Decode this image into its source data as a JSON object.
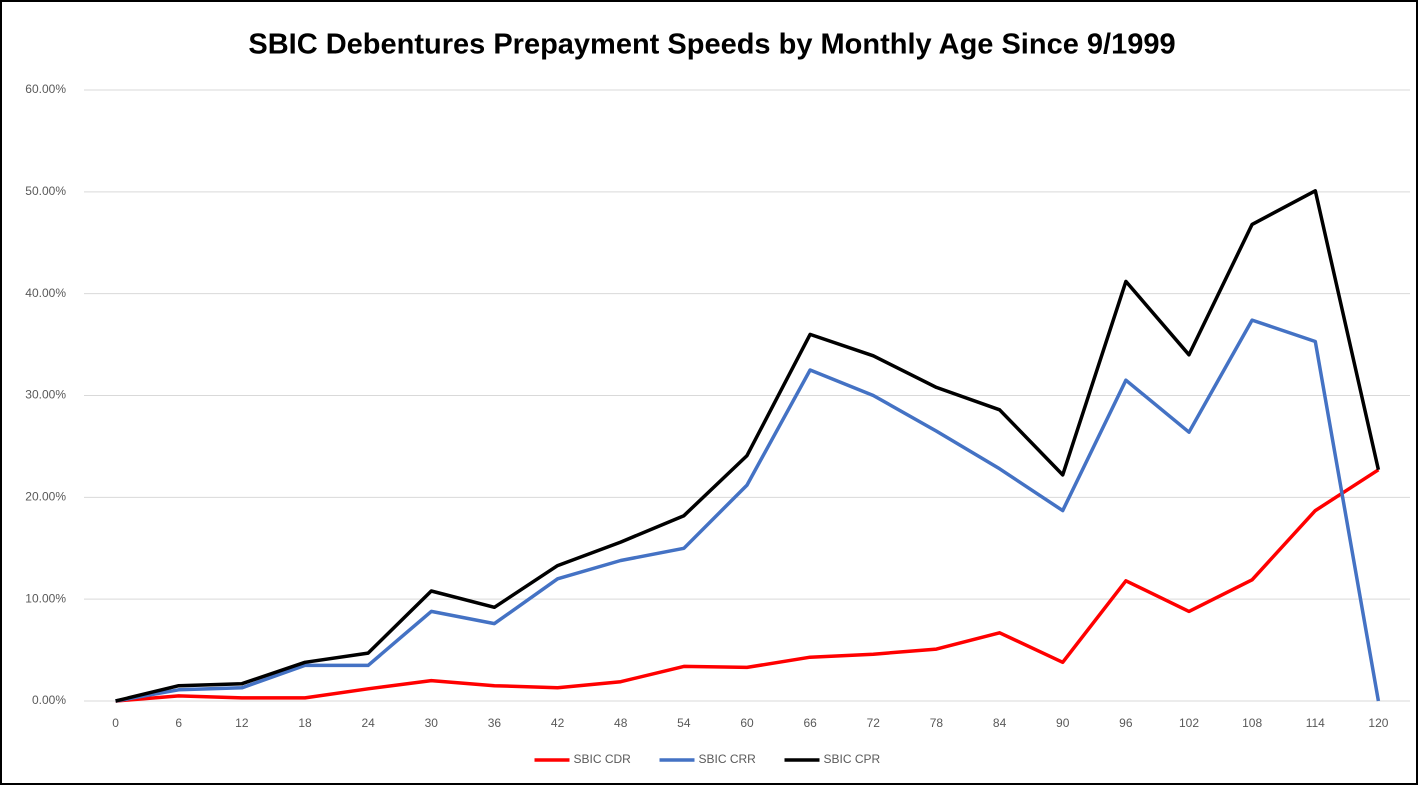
{
  "chart_data": {
    "type": "line",
    "title": "SBIC Debentures Prepayment Speeds by Monthly Age Since 9/1999",
    "categories": [
      "0",
      "6",
      "12",
      "18",
      "24",
      "30",
      "36",
      "42",
      "48",
      "54",
      "60",
      "66",
      "72",
      "78",
      "84",
      "90",
      "96",
      "102",
      "108",
      "114",
      "120"
    ],
    "series": [
      {
        "name": "SBIC CDR",
        "color": "#ff0000",
        "values": [
          0,
          0.5,
          0.3,
          0.3,
          1.2,
          2.0,
          1.5,
          1.3,
          1.9,
          3.4,
          3.3,
          4.3,
          4.6,
          5.1,
          6.7,
          3.8,
          11.8,
          8.8,
          11.9,
          18.7,
          22.7
        ]
      },
      {
        "name": "SBIC CRR",
        "color": "#4472c4",
        "values": [
          0,
          1.1,
          1.3,
          3.5,
          3.5,
          8.8,
          7.6,
          12.0,
          13.8,
          15.0,
          21.2,
          32.5,
          30.0,
          26.5,
          22.8,
          18.7,
          31.5,
          26.4,
          37.4,
          35.3,
          0
        ]
      },
      {
        "name": "SBIC CPR",
        "color": "#000000",
        "values": [
          0,
          1.5,
          1.7,
          3.8,
          4.7,
          10.8,
          9.2,
          13.3,
          15.6,
          18.2,
          24.1,
          36.0,
          33.9,
          30.8,
          28.6,
          22.2,
          41.2,
          34.0,
          46.8,
          50.1,
          22.7
        ]
      }
    ],
    "ylim": [
      0,
      60
    ],
    "yticks": [
      {
        "value": 0,
        "label": "0.00%"
      },
      {
        "value": 10,
        "label": "10.00%"
      },
      {
        "value": 20,
        "label": "20.00%"
      },
      {
        "value": 30,
        "label": "30.00%"
      },
      {
        "value": 40,
        "label": "40.00%"
      },
      {
        "value": 50,
        "label": "50.00%"
      },
      {
        "value": 60,
        "label": "60.00%"
      }
    ],
    "grid": true,
    "legend": "bottom"
  }
}
